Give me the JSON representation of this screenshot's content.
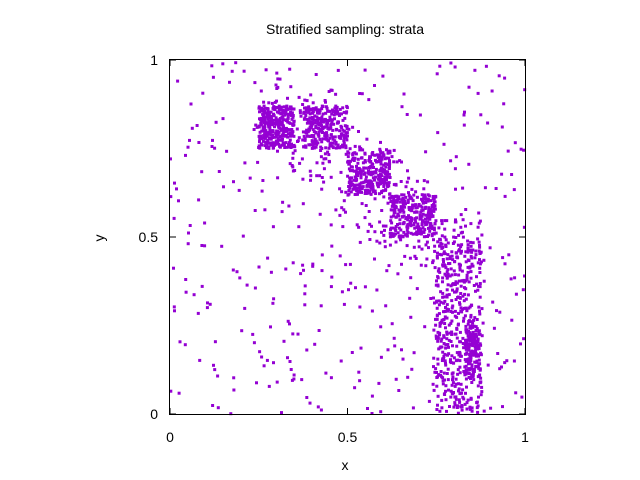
{
  "chart_data": {
    "type": "scatter",
    "title": "Stratified sampling: strata",
    "xlabel": "x",
    "ylabel": "y",
    "xlim": [
      0,
      1
    ],
    "ylim": [
      0,
      1
    ],
    "x_ticks": [
      "0",
      "0.5",
      "1"
    ],
    "y_ticks": [
      "0",
      "0.5",
      "1"
    ],
    "grid": false,
    "marker_color": "#9400d3",
    "clusters": [
      {
        "x_range": [
          0.25,
          0.35
        ],
        "y_range": [
          0.75,
          0.87
        ],
        "count": 300
      },
      {
        "x_range": [
          0.375,
          0.5
        ],
        "y_range": [
          0.75,
          0.87
        ],
        "count": 250
      },
      {
        "x_range": [
          0.5,
          0.62
        ],
        "y_range": [
          0.62,
          0.75
        ],
        "count": 260
      },
      {
        "x_range": [
          0.62,
          0.75
        ],
        "y_range": [
          0.5,
          0.62
        ],
        "count": 260
      },
      {
        "x_range": [
          0.75,
          0.875
        ],
        "y_range": [
          0.0,
          0.5
        ],
        "count": 300
      },
      {
        "x_range": [
          0.83,
          0.875
        ],
        "y_range": [
          0.1,
          0.25
        ],
        "count": 120
      }
    ],
    "diagonal_band": {
      "description": "density band along the strata",
      "count": 400
    },
    "background_uniform": {
      "x_range": [
        0,
        1
      ],
      "y_range": [
        0,
        1
      ],
      "count": 380
    }
  }
}
